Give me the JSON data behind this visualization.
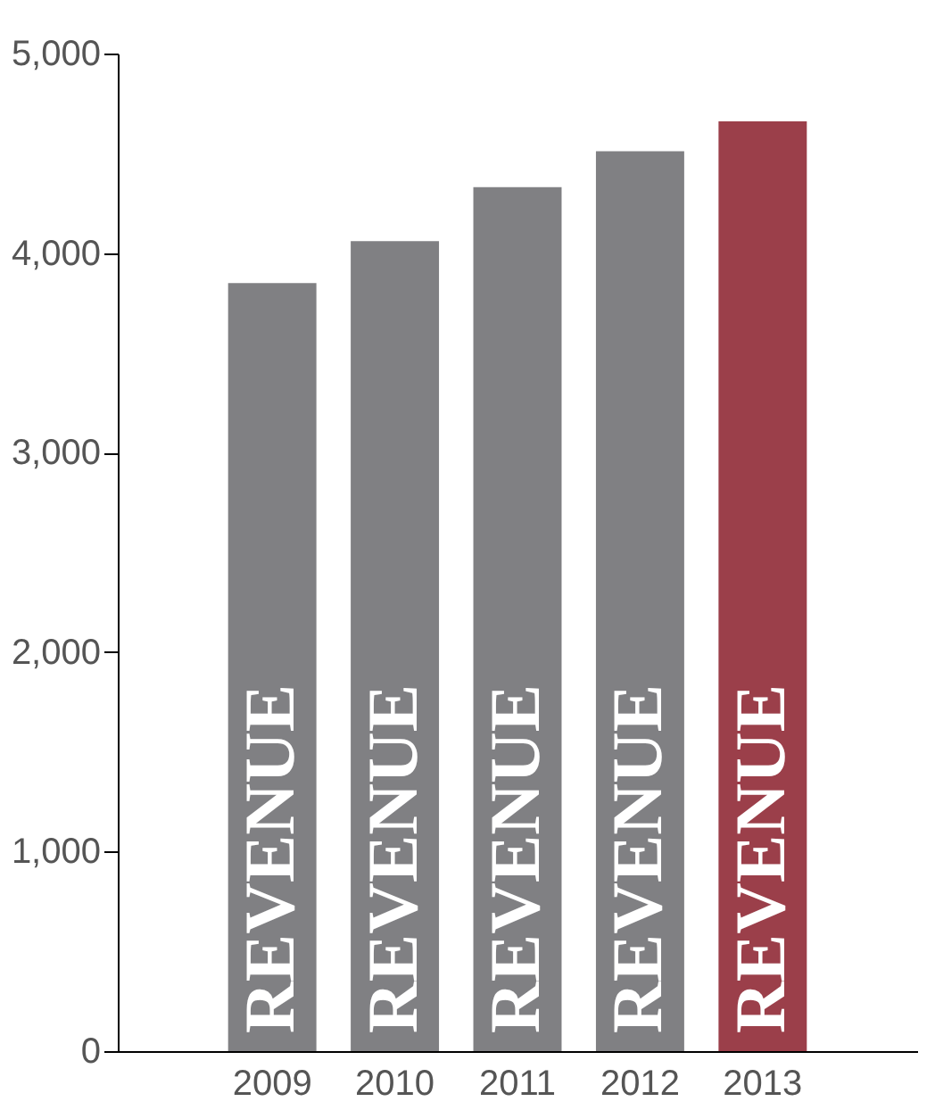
{
  "chart_data": {
    "type": "bar",
    "categories": [
      "2009",
      "2010",
      "2011",
      "2012",
      "2013"
    ],
    "values": [
      3850,
      4060,
      4330,
      4510,
      4660
    ],
    "colors": [
      "#808083",
      "#808083",
      "#808083",
      "#808083",
      "#9b3f4a"
    ],
    "ylim": [
      0,
      5000
    ],
    "yticks": [
      {
        "value": 0,
        "label": "0"
      },
      {
        "value": 1000,
        "label": "1,000"
      },
      {
        "value": 2000,
        "label": "2,000"
      },
      {
        "value": 3000,
        "label": "3,000"
      },
      {
        "value": 4000,
        "label": "4,000"
      },
      {
        "value": 5000,
        "label": "5,000"
      }
    ],
    "annotations": [
      "REVENUE",
      "REVENUE",
      "REVENUE",
      "REVENUE",
      "REVENUE"
    ],
    "grid": false
  }
}
